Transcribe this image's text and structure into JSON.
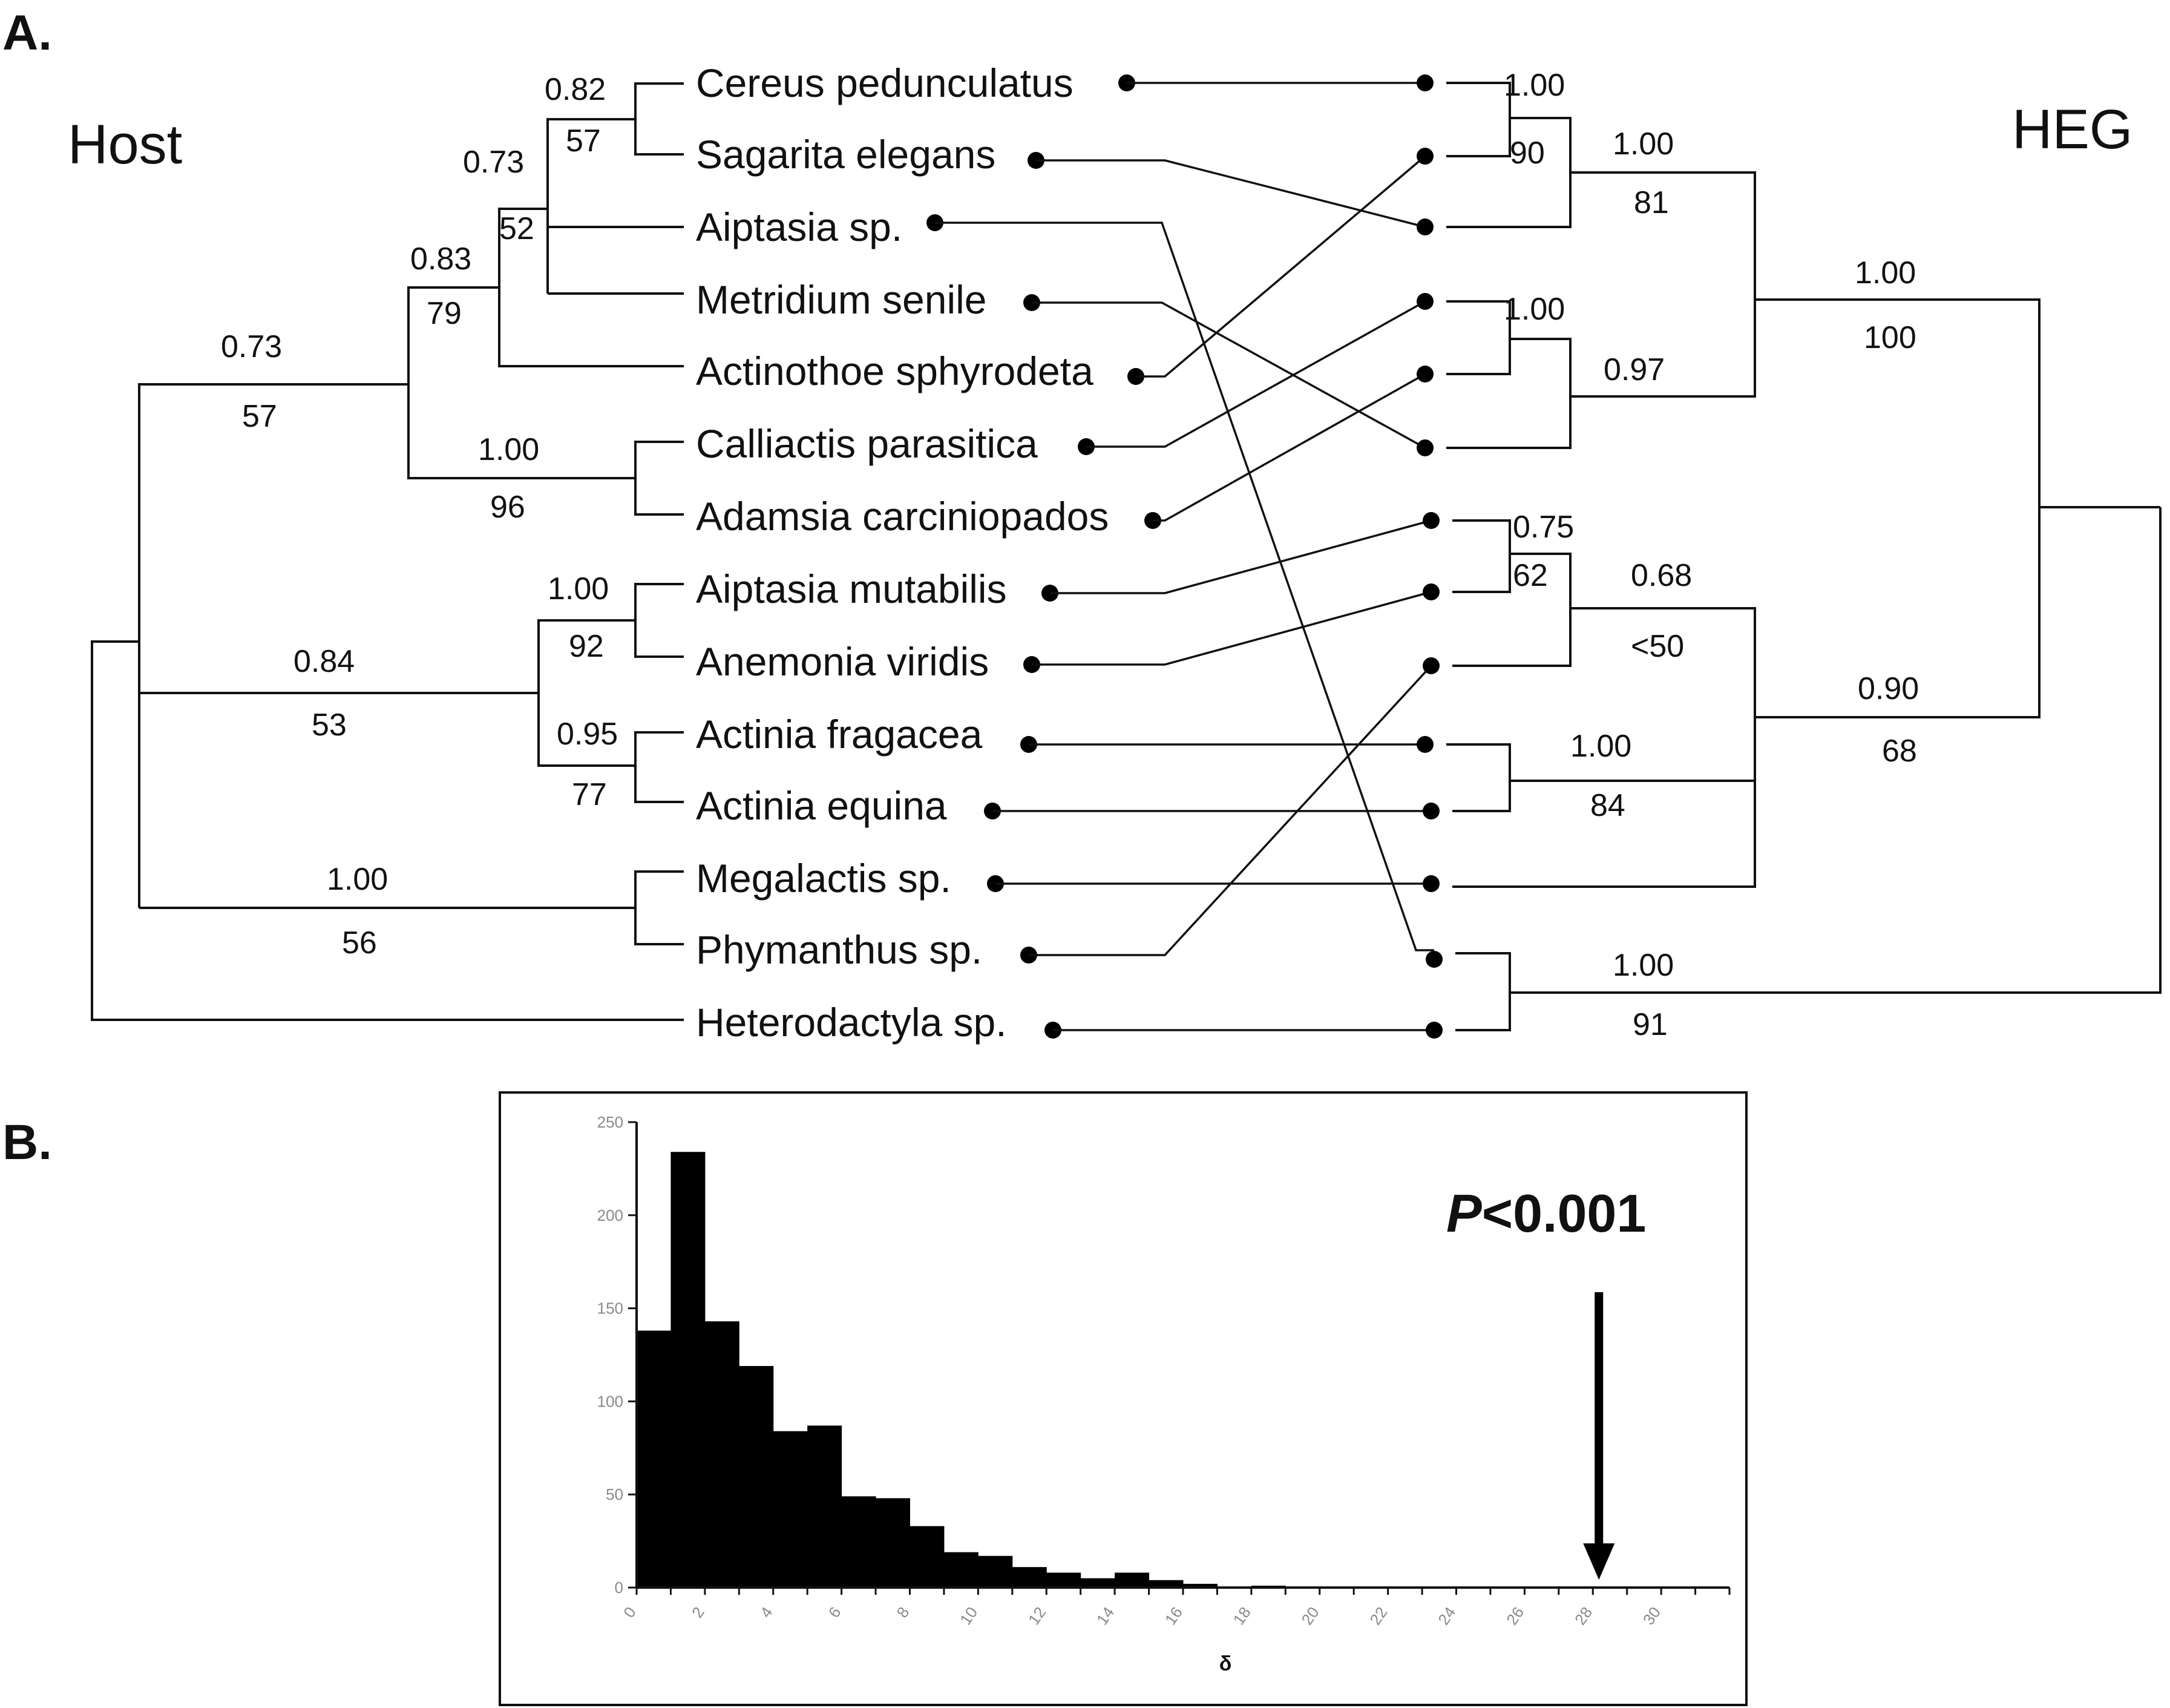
{
  "panel_a": {
    "label": "A.",
    "host_title": "Host",
    "heg_title": "HEG",
    "taxa": [
      "Cereus pedunculatus",
      "Sagarita elegans",
      "Aiptasia sp.",
      "Metridium senile",
      "Actinothoe sphyrodeta",
      "Calliactis parasitica",
      "Adamsia carciniopados",
      "Aiptasia mutabilis",
      "Anemonia viridis",
      "Actinia fragacea",
      "Actinia equina",
      "Megalactis sp.",
      "Phymanthus sp.",
      "Heterodactyla sp."
    ],
    "host_support": [
      {
        "clade": "Cereus+Sagarita",
        "posterior": "0.82",
        "bootstrap": "57"
      },
      {
        "clade": "Cereus+Sagarita+Aiptasia sp.",
        "posterior": "0.73",
        "bootstrap": "52"
      },
      {
        "clade": "+Metridium+Actinothoe",
        "posterior": "0.83",
        "bootstrap": "79"
      },
      {
        "clade": "top group",
        "posterior": "0.73",
        "bootstrap": "57"
      },
      {
        "clade": "Calliactis+Adamsia",
        "posterior": "1.00",
        "bootstrap": "96"
      },
      {
        "clade": "Aiptasia mutabilis+Anemonia",
        "posterior": "1.00",
        "bootstrap": "92"
      },
      {
        "clade": "Actinia fragacea+equina",
        "posterior": "0.95",
        "bootstrap": "77"
      },
      {
        "clade": "middle group",
        "posterior": "0.84",
        "bootstrap": "53"
      },
      {
        "clade": "Megalactis+Phymanthus",
        "posterior": "1.00",
        "bootstrap": "56"
      }
    ],
    "heg_support": [
      {
        "clade": "h1+h2",
        "posterior": "1.00",
        "bootstrap": "90"
      },
      {
        "clade": "h1-h3",
        "posterior": "1.00",
        "bootstrap": "81"
      },
      {
        "clade": "h4+h5",
        "posterior": "1.00",
        "bootstrap": ""
      },
      {
        "clade": "h4-h6",
        "posterior": "0.97",
        "bootstrap": ""
      },
      {
        "clade": "h1-h6",
        "posterior": "1.00",
        "bootstrap": "100"
      },
      {
        "clade": "h7+h8",
        "posterior": "0.75",
        "bootstrap": "62"
      },
      {
        "clade": "h7-h9",
        "posterior": "0.68",
        "bootstrap": "<50"
      },
      {
        "clade": "h10+h11",
        "posterior": "1.00",
        "bootstrap": "84"
      },
      {
        "clade": "h7-h12",
        "posterior": "0.90",
        "bootstrap": "68"
      },
      {
        "clade": "h13+h14",
        "posterior": "1.00",
        "bootstrap": "91"
      }
    ],
    "associations": [
      {
        "host": "Cereus pedunculatus",
        "heg_tip": 1
      },
      {
        "host": "Sagarita elegans",
        "heg_tip": 3
      },
      {
        "host": "Aiptasia sp.",
        "heg_tip": 13
      },
      {
        "host": "Metridium senile",
        "heg_tip": 6
      },
      {
        "host": "Actinothoe sphyrodeta",
        "heg_tip": 2
      },
      {
        "host": "Calliactis parasitica",
        "heg_tip": 4
      },
      {
        "host": "Adamsia carciniopados",
        "heg_tip": 5
      },
      {
        "host": "Aiptasia mutabilis",
        "heg_tip": 7
      },
      {
        "host": "Anemonia viridis",
        "heg_tip": 8
      },
      {
        "host": "Actinia fragacea",
        "heg_tip": 10
      },
      {
        "host": "Actinia equina",
        "heg_tip": 11
      },
      {
        "host": "Megalactis sp.",
        "heg_tip": 12
      },
      {
        "host": "Phymanthus sp.",
        "heg_tip": 9
      },
      {
        "host": "Heterodactyla sp.",
        "heg_tip": 14
      }
    ]
  },
  "panel_b": {
    "label": "B.",
    "p_italic": "P",
    "p_rest": "<0.001",
    "arrow_at": 28
  },
  "chart_data": {
    "type": "bar",
    "title": "",
    "xlabel": "δ",
    "ylabel": "",
    "xlim": [
      0,
      32
    ],
    "ylim": [
      0,
      250
    ],
    "bin_width": 1,
    "x_ticks": [
      0,
      2,
      4,
      6,
      8,
      10,
      12,
      14,
      16,
      18,
      20,
      22,
      24,
      26,
      28,
      30
    ],
    "y_ticks": [
      0,
      50,
      100,
      150,
      200,
      250
    ],
    "bins": [
      0,
      1,
      2,
      3,
      4,
      5,
      6,
      7,
      8,
      9,
      10,
      11,
      12,
      13,
      14,
      15,
      16,
      17,
      18,
      19
    ],
    "values": [
      138,
      234,
      143,
      119,
      84,
      87,
      49,
      48,
      33,
      19,
      17,
      11,
      8,
      5,
      8,
      4,
      2,
      0,
      1,
      0
    ],
    "grid": false,
    "legend": "none",
    "annotation": {
      "text": "P<0.001",
      "x": 28
    }
  }
}
